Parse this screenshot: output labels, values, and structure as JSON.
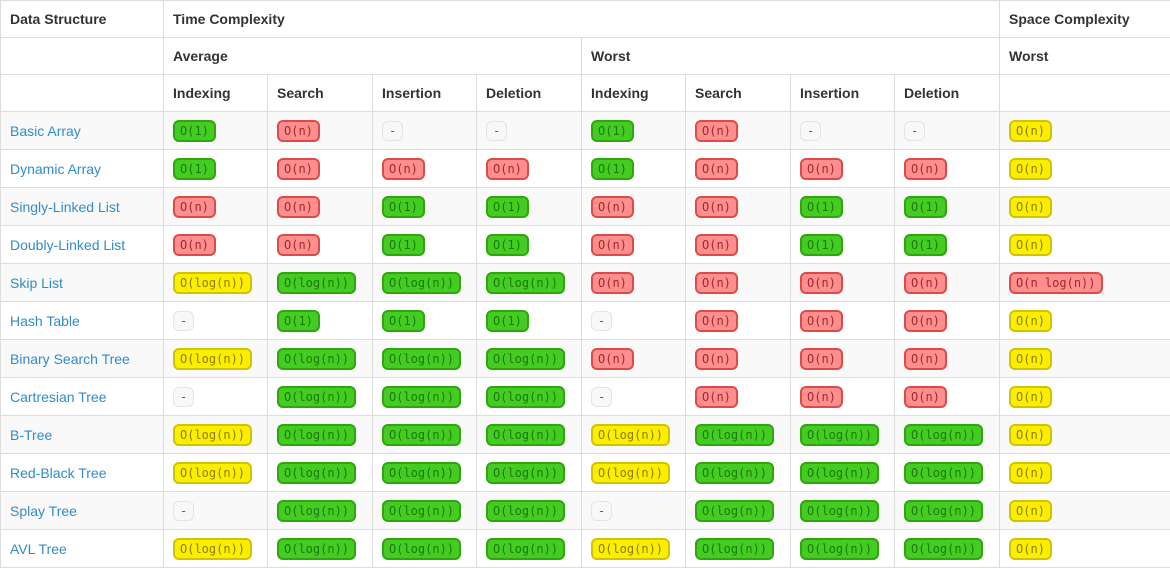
{
  "header": {
    "data_structure": "Data Structure",
    "time_complexity": "Time Complexity",
    "space_complexity": "Space Complexity",
    "average": "Average",
    "worst": "Worst",
    "space_worst": "Worst",
    "operations": [
      "Indexing",
      "Search",
      "Insertion",
      "Deletion"
    ]
  },
  "colors": {
    "badge_green_bg": "#44cc22",
    "badge_red_bg": "#ff8f8f",
    "badge_yellow_bg": "#fdee00",
    "link_blue": "#318bc9",
    "grid_line": "#dddddd",
    "stripe_row_bg": "#f9f9f9"
  },
  "rows": [
    {
      "label": "Basic Array",
      "avg": [
        {
          "t": "O(1)",
          "c": "green"
        },
        {
          "t": "O(n)",
          "c": "red"
        },
        {
          "t": "-",
          "c": "dash"
        },
        {
          "t": "-",
          "c": "dash"
        }
      ],
      "worst": [
        {
          "t": "O(1)",
          "c": "green"
        },
        {
          "t": "O(n)",
          "c": "red"
        },
        {
          "t": "-",
          "c": "dash"
        },
        {
          "t": "-",
          "c": "dash"
        }
      ],
      "space": {
        "t": "O(n)",
        "c": "yellow"
      }
    },
    {
      "label": "Dynamic Array",
      "avg": [
        {
          "t": "O(1)",
          "c": "green"
        },
        {
          "t": "O(n)",
          "c": "red"
        },
        {
          "t": "O(n)",
          "c": "red"
        },
        {
          "t": "O(n)",
          "c": "red"
        }
      ],
      "worst": [
        {
          "t": "O(1)",
          "c": "green"
        },
        {
          "t": "O(n)",
          "c": "red"
        },
        {
          "t": "O(n)",
          "c": "red"
        },
        {
          "t": "O(n)",
          "c": "red"
        }
      ],
      "space": {
        "t": "O(n)",
        "c": "yellow"
      }
    },
    {
      "label": "Singly-Linked List",
      "avg": [
        {
          "t": "O(n)",
          "c": "red"
        },
        {
          "t": "O(n)",
          "c": "red"
        },
        {
          "t": "O(1)",
          "c": "green"
        },
        {
          "t": "O(1)",
          "c": "green"
        }
      ],
      "worst": [
        {
          "t": "O(n)",
          "c": "red"
        },
        {
          "t": "O(n)",
          "c": "red"
        },
        {
          "t": "O(1)",
          "c": "green"
        },
        {
          "t": "O(1)",
          "c": "green"
        }
      ],
      "space": {
        "t": "O(n)",
        "c": "yellow"
      }
    },
    {
      "label": "Doubly-Linked List",
      "avg": [
        {
          "t": "O(n)",
          "c": "red"
        },
        {
          "t": "O(n)",
          "c": "red"
        },
        {
          "t": "O(1)",
          "c": "green"
        },
        {
          "t": "O(1)",
          "c": "green"
        }
      ],
      "worst": [
        {
          "t": "O(n)",
          "c": "red"
        },
        {
          "t": "O(n)",
          "c": "red"
        },
        {
          "t": "O(1)",
          "c": "green"
        },
        {
          "t": "O(1)",
          "c": "green"
        }
      ],
      "space": {
        "t": "O(n)",
        "c": "yellow"
      }
    },
    {
      "label": "Skip List",
      "avg": [
        {
          "t": "O(log(n))",
          "c": "yellow"
        },
        {
          "t": "O(log(n))",
          "c": "green"
        },
        {
          "t": "O(log(n))",
          "c": "green"
        },
        {
          "t": "O(log(n))",
          "c": "green"
        }
      ],
      "worst": [
        {
          "t": "O(n)",
          "c": "red"
        },
        {
          "t": "O(n)",
          "c": "red"
        },
        {
          "t": "O(n)",
          "c": "red"
        },
        {
          "t": "O(n)",
          "c": "red"
        }
      ],
      "space": {
        "t": "O(n log(n))",
        "c": "red"
      }
    },
    {
      "label": "Hash Table",
      "avg": [
        {
          "t": "-",
          "c": "dash"
        },
        {
          "t": "O(1)",
          "c": "green"
        },
        {
          "t": "O(1)",
          "c": "green"
        },
        {
          "t": "O(1)",
          "c": "green"
        }
      ],
      "worst": [
        {
          "t": "-",
          "c": "dash"
        },
        {
          "t": "O(n)",
          "c": "red"
        },
        {
          "t": "O(n)",
          "c": "red"
        },
        {
          "t": "O(n)",
          "c": "red"
        }
      ],
      "space": {
        "t": "O(n)",
        "c": "yellow"
      }
    },
    {
      "label": "Binary Search Tree",
      "avg": [
        {
          "t": "O(log(n))",
          "c": "yellow"
        },
        {
          "t": "O(log(n))",
          "c": "green"
        },
        {
          "t": "O(log(n))",
          "c": "green"
        },
        {
          "t": "O(log(n))",
          "c": "green"
        }
      ],
      "worst": [
        {
          "t": "O(n)",
          "c": "red"
        },
        {
          "t": "O(n)",
          "c": "red"
        },
        {
          "t": "O(n)",
          "c": "red"
        },
        {
          "t": "O(n)",
          "c": "red"
        }
      ],
      "space": {
        "t": "O(n)",
        "c": "yellow"
      }
    },
    {
      "label": "Cartresian Tree",
      "avg": [
        {
          "t": "-",
          "c": "dash"
        },
        {
          "t": "O(log(n))",
          "c": "green"
        },
        {
          "t": "O(log(n))",
          "c": "green"
        },
        {
          "t": "O(log(n))",
          "c": "green"
        }
      ],
      "worst": [
        {
          "t": "-",
          "c": "dash"
        },
        {
          "t": "O(n)",
          "c": "red"
        },
        {
          "t": "O(n)",
          "c": "red"
        },
        {
          "t": "O(n)",
          "c": "red"
        }
      ],
      "space": {
        "t": "O(n)",
        "c": "yellow"
      }
    },
    {
      "label": "B-Tree",
      "avg": [
        {
          "t": "O(log(n))",
          "c": "yellow"
        },
        {
          "t": "O(log(n))",
          "c": "green"
        },
        {
          "t": "O(log(n))",
          "c": "green"
        },
        {
          "t": "O(log(n))",
          "c": "green"
        }
      ],
      "worst": [
        {
          "t": "O(log(n))",
          "c": "yellow"
        },
        {
          "t": "O(log(n))",
          "c": "green"
        },
        {
          "t": "O(log(n))",
          "c": "green"
        },
        {
          "t": "O(log(n))",
          "c": "green"
        }
      ],
      "space": {
        "t": "O(n)",
        "c": "yellow"
      }
    },
    {
      "label": "Red-Black Tree",
      "avg": [
        {
          "t": "O(log(n))",
          "c": "yellow"
        },
        {
          "t": "O(log(n))",
          "c": "green"
        },
        {
          "t": "O(log(n))",
          "c": "green"
        },
        {
          "t": "O(log(n))",
          "c": "green"
        }
      ],
      "worst": [
        {
          "t": "O(log(n))",
          "c": "yellow"
        },
        {
          "t": "O(log(n))",
          "c": "green"
        },
        {
          "t": "O(log(n))",
          "c": "green"
        },
        {
          "t": "O(log(n))",
          "c": "green"
        }
      ],
      "space": {
        "t": "O(n)",
        "c": "yellow"
      }
    },
    {
      "label": "Splay Tree",
      "avg": [
        {
          "t": "-",
          "c": "dash"
        },
        {
          "t": "O(log(n))",
          "c": "green"
        },
        {
          "t": "O(log(n))",
          "c": "green"
        },
        {
          "t": "O(log(n))",
          "c": "green"
        }
      ],
      "worst": [
        {
          "t": "-",
          "c": "dash"
        },
        {
          "t": "O(log(n))",
          "c": "green"
        },
        {
          "t": "O(log(n))",
          "c": "green"
        },
        {
          "t": "O(log(n))",
          "c": "green"
        }
      ],
      "space": {
        "t": "O(n)",
        "c": "yellow"
      }
    },
    {
      "label": "AVL Tree",
      "avg": [
        {
          "t": "O(log(n))",
          "c": "yellow"
        },
        {
          "t": "O(log(n))",
          "c": "green"
        },
        {
          "t": "O(log(n))",
          "c": "green"
        },
        {
          "t": "O(log(n))",
          "c": "green"
        }
      ],
      "worst": [
        {
          "t": "O(log(n))",
          "c": "yellow"
        },
        {
          "t": "O(log(n))",
          "c": "green"
        },
        {
          "t": "O(log(n))",
          "c": "green"
        },
        {
          "t": "O(log(n))",
          "c": "green"
        }
      ],
      "space": {
        "t": "O(n)",
        "c": "yellow"
      }
    }
  ]
}
